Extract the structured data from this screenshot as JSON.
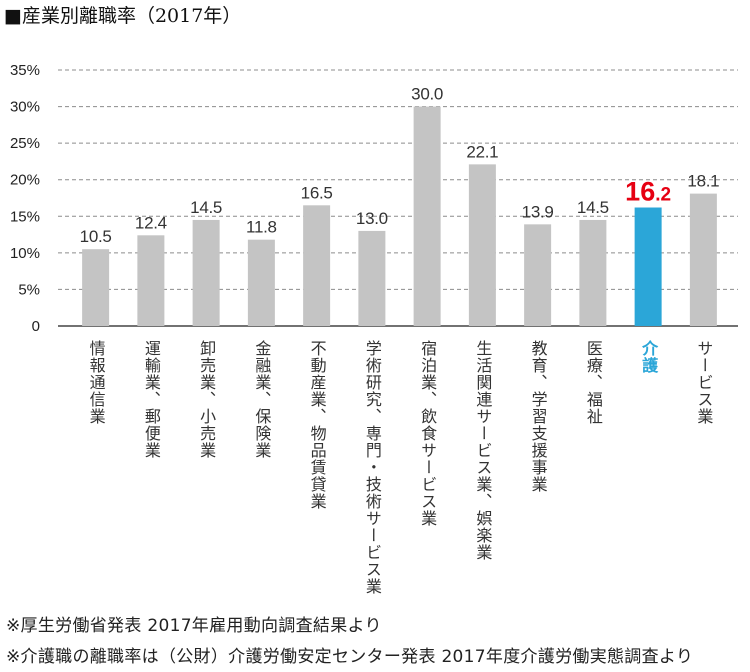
{
  "chart_data": {
    "type": "bar",
    "title": "■産業別離職率（2017年）",
    "categories": [
      "情報通信業",
      "運輸業、郵便業",
      "卸売業、小売業",
      "金融業、保険業",
      "不動産業、物品賃貸業",
      "学術研究、専門・技術サービス業",
      "宿泊業、飲食サービス業",
      "生活関連サービス業、娯楽業",
      "教育、学習支援事業",
      "医療、福祉",
      "介護",
      "サービス業"
    ],
    "values": [
      10.5,
      12.4,
      14.5,
      11.8,
      16.5,
      13.0,
      30.0,
      22.1,
      13.9,
      14.5,
      16.2,
      18.1
    ],
    "emphasized": [
      false,
      false,
      false,
      false,
      false,
      false,
      false,
      false,
      false,
      false,
      true,
      false
    ],
    "ylim": [
      0,
      35
    ],
    "y_ticks": [
      {
        "value": 0,
        "label": "0"
      },
      {
        "value": 5,
        "label": "5%"
      },
      {
        "value": 10,
        "label": "10%"
      },
      {
        "value": 15,
        "label": "15%"
      },
      {
        "value": 20,
        "label": "20%"
      },
      {
        "value": 25,
        "label": "25%"
      },
      {
        "value": 30,
        "label": "30%"
      },
      {
        "value": 35,
        "label": "35%"
      }
    ],
    "grid": true,
    "colors": {
      "bar": "#c4c4c4",
      "bar_emphasized": "#2ba6d8",
      "value_label": "#333333",
      "value_label_emphasized": "#e60012",
      "category_label": "#333333",
      "category_label_emphasized": "#2ba6d8",
      "grid": "#8c8c8c",
      "axis": "#444444",
      "tick_label": "#222222"
    }
  },
  "footnotes": [
    "※厚生労働省発表 2017年雇用動向調査結果より",
    "※介護職の離職率は（公財）介護労働安定センター発表 2017年度介護労働実態調査より"
  ]
}
